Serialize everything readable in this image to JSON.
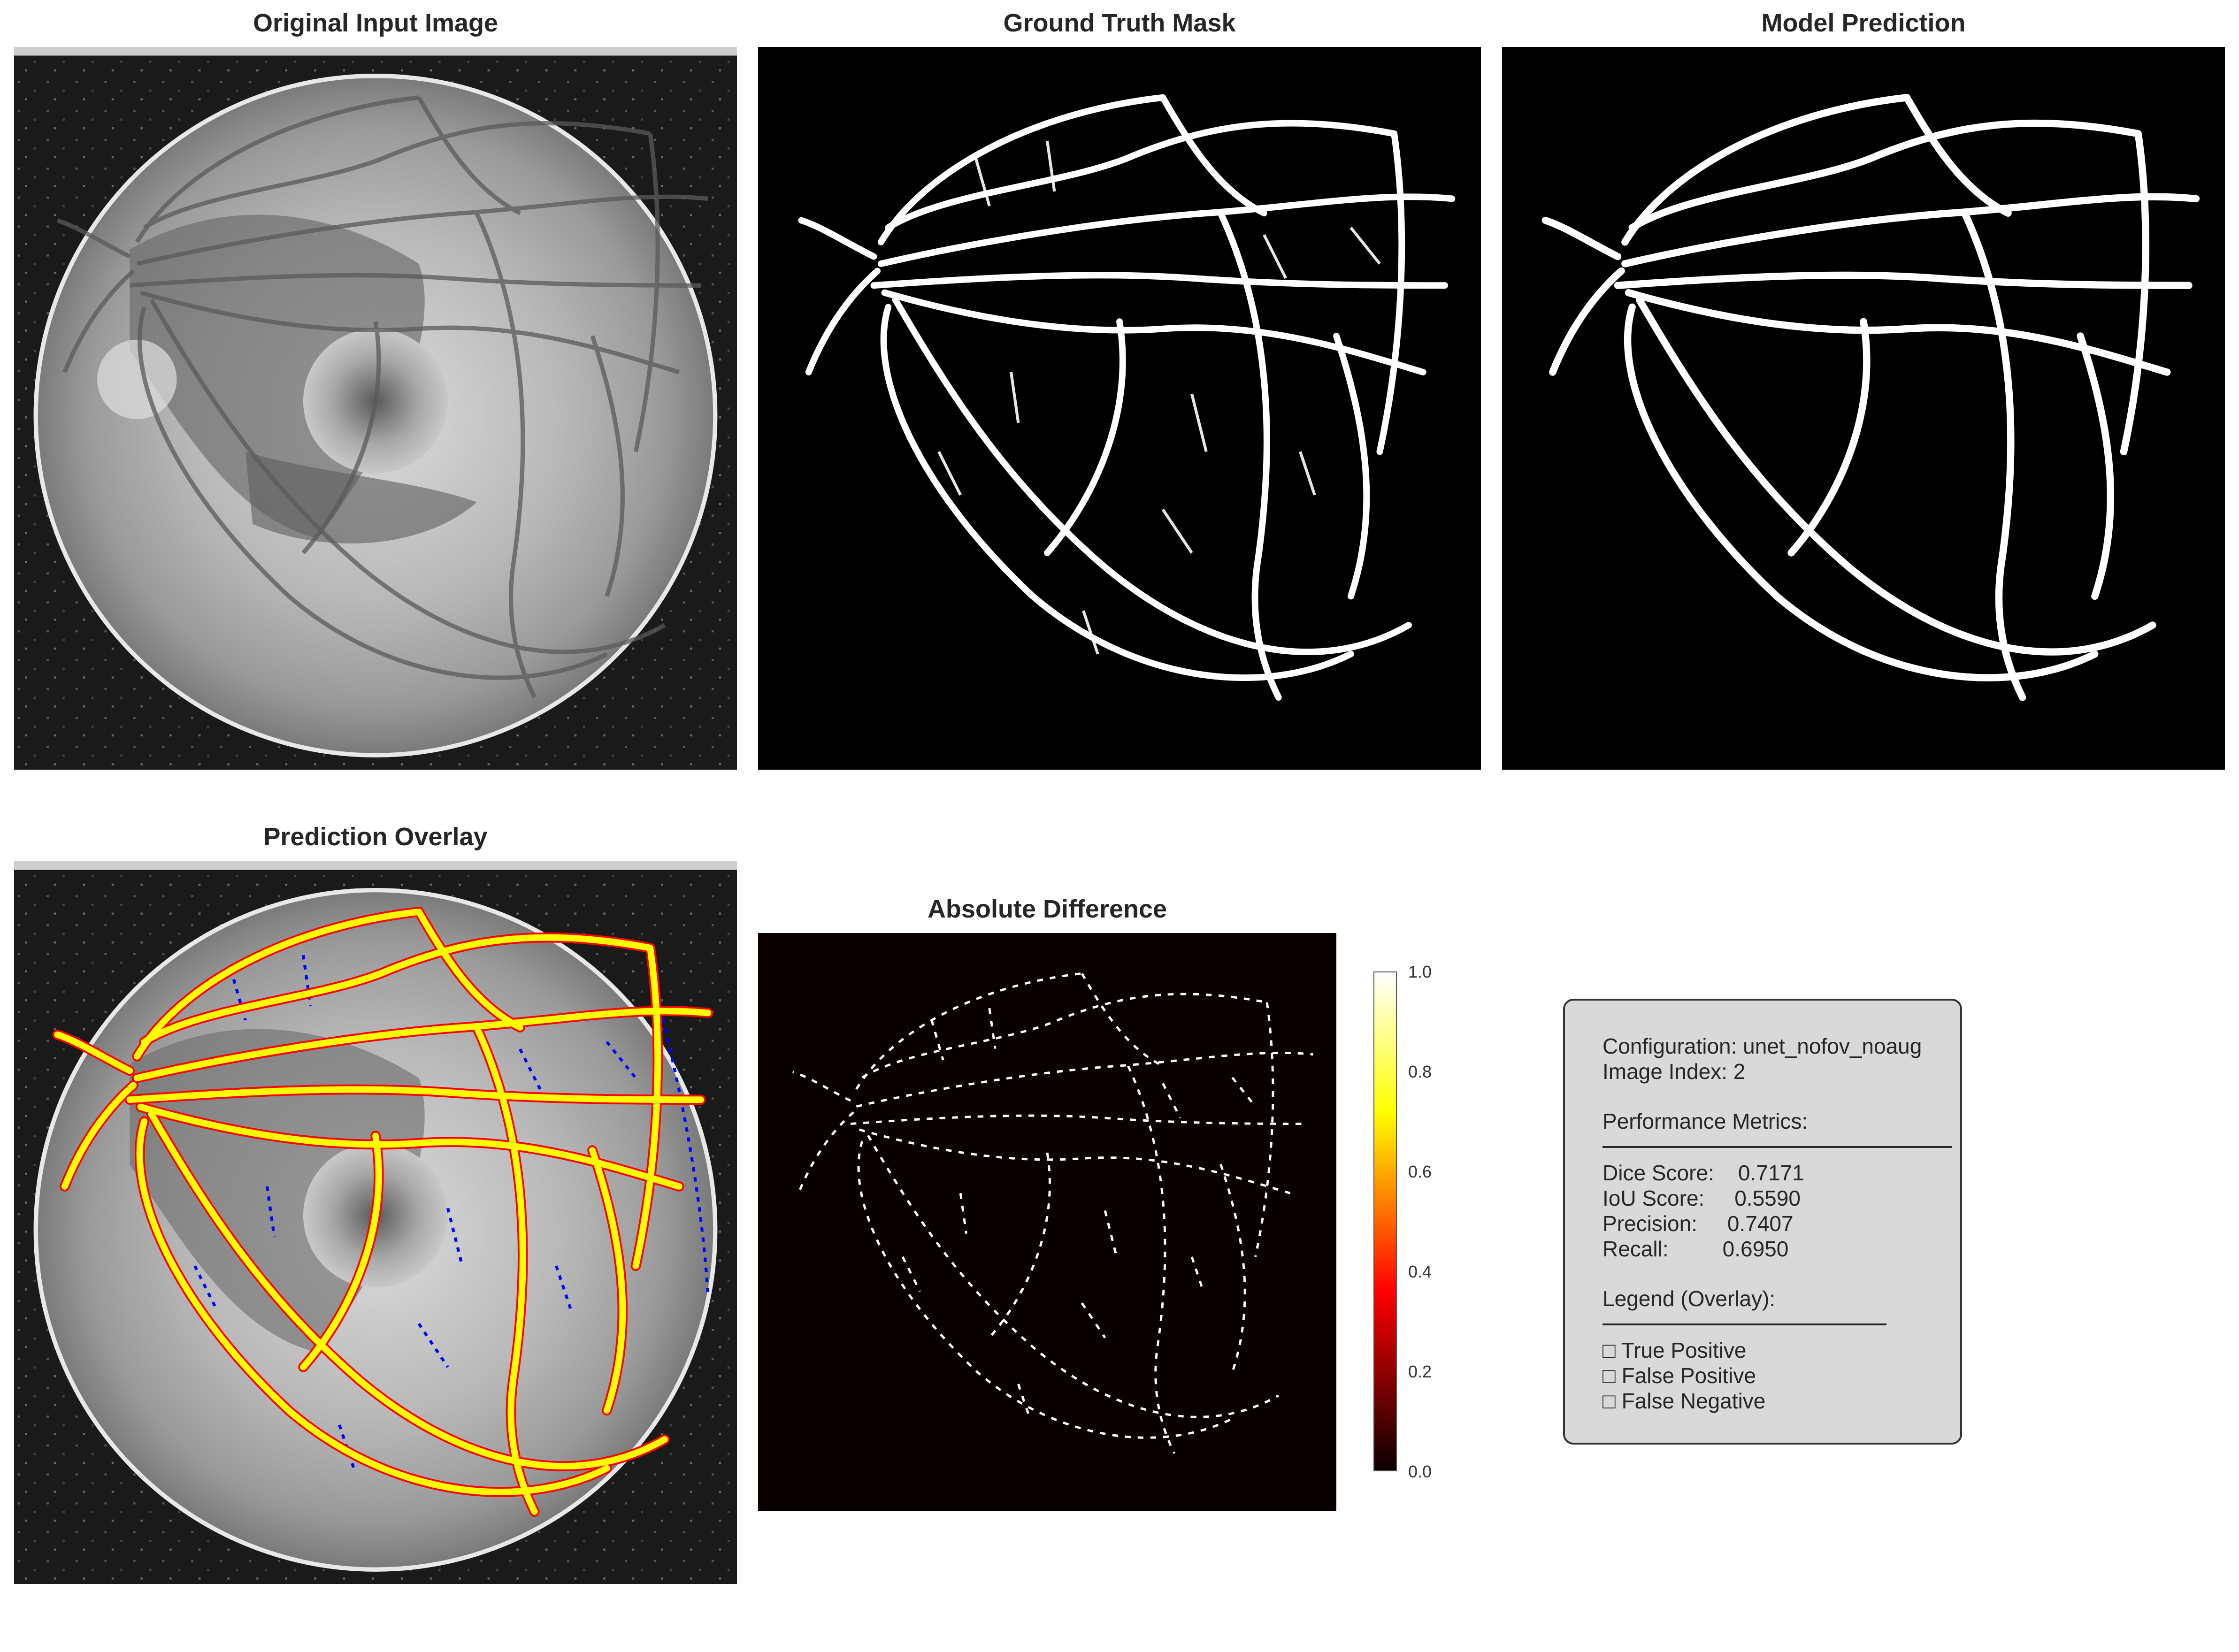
{
  "panels": {
    "original_title": "Original Input Image",
    "ground_truth_title": "Ground Truth Mask",
    "prediction_title": "Model Prediction",
    "overlay_title": "Prediction Overlay",
    "difference_title": "Absolute Difference"
  },
  "colorbar": {
    "ticks": [
      "1.0",
      "0.8",
      "0.6",
      "0.4",
      "0.2",
      "0.0"
    ],
    "colormap": "hot"
  },
  "info": {
    "configuration": "Configuration: unet_nofov_noaug",
    "image_index": "Image Index: 2",
    "metrics_heading": "Performance Metrics:",
    "dice": "Dice Score:    0.7171",
    "iou": "IoU Score:     0.5590",
    "precision": "Precision:     0.7407",
    "recall": "Recall:         0.6950",
    "legend_heading": "Legend (Overlay):",
    "legend_tp": "□ True Positive",
    "legend_fp": "□ False Positive",
    "legend_fn": "□ False Negative"
  },
  "colors": {
    "true_positive": "#ffff00",
    "false_positive": "#ff0000",
    "false_negative": "#0000ff"
  }
}
